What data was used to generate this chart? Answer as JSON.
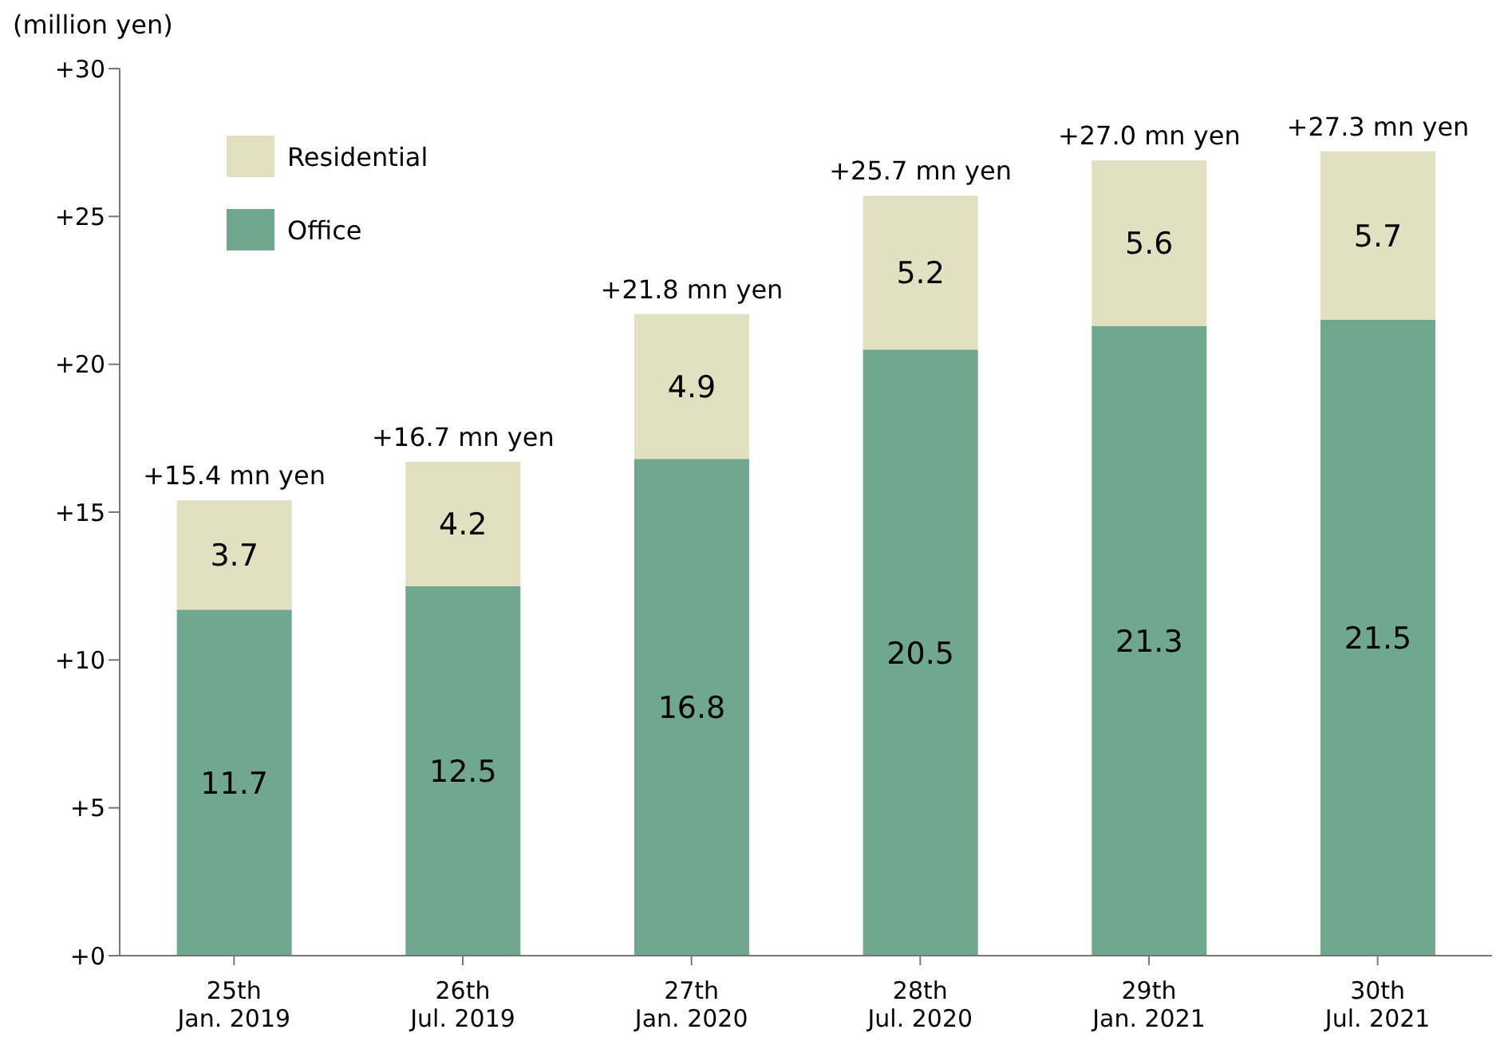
{
  "chart_data": {
    "type": "bar",
    "stacked": true,
    "ylabel": "(million yen)",
    "categories": [
      "25th\nJan. 2019",
      "26th\nJul. 2019",
      "27th\nJan. 2020",
      "28th\nJul. 2020",
      "29th\nJan. 2021",
      "30th\nJul. 2021"
    ],
    "series": [
      {
        "name": "Office",
        "color": "#6fa78f",
        "values": [
          11.7,
          12.5,
          16.8,
          20.5,
          21.3,
          21.5
        ]
      },
      {
        "name": "Residential",
        "color": "#e1e0c0",
        "values": [
          3.7,
          4.2,
          4.9,
          5.2,
          5.6,
          5.7
        ]
      }
    ],
    "totals": [
      "+15.4 mn yen",
      "+16.7 mn yen",
      "+21.8 mn yen",
      "+25.7 mn yen",
      "+27.0 mn yen",
      "+27.3 mn yen"
    ],
    "ylim": [
      0,
      30
    ],
    "yticks": [
      {
        "value": 0,
        "label": "+0"
      },
      {
        "value": 5,
        "label": "+5"
      },
      {
        "value": 10,
        "label": "+10"
      },
      {
        "value": 15,
        "label": "+15"
      },
      {
        "value": 20,
        "label": "+20"
      },
      {
        "value": 25,
        "label": "+25"
      },
      {
        "value": 30,
        "label": "+30"
      }
    ],
    "data_labels": true,
    "legend": "top left",
    "grid": false
  }
}
